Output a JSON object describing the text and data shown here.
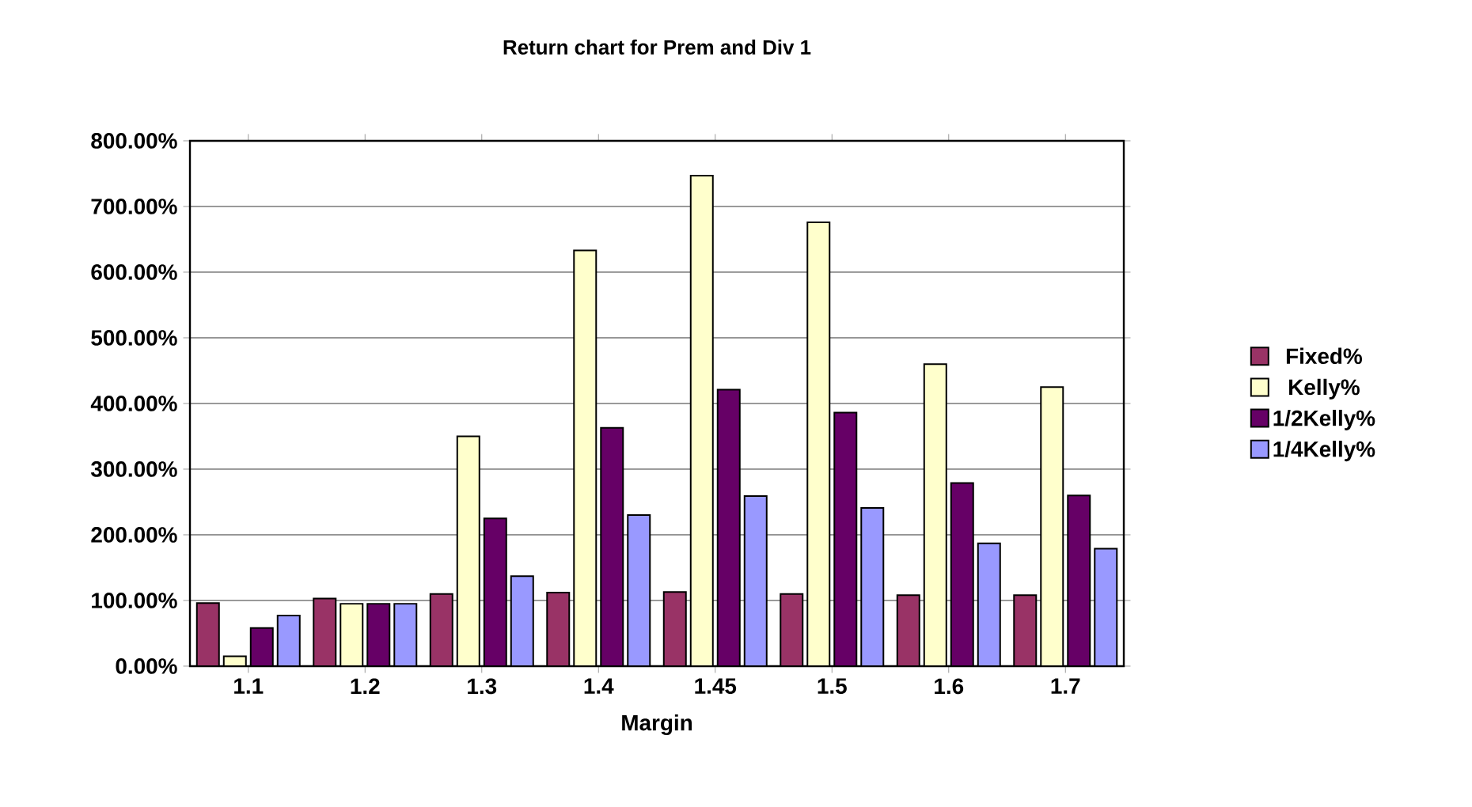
{
  "chart_data": {
    "type": "bar",
    "title": "Return chart for Prem and Div 1",
    "xlabel": "Margin",
    "categories": [
      "1.1",
      "1.2",
      "1.3",
      "1.4",
      "1.45",
      "1.5",
      "1.6",
      "1.7"
    ],
    "series": [
      {
        "name": "Fixed%",
        "color": "#993366",
        "values": [
          96,
          103,
          110,
          112,
          113,
          110,
          108,
          108
        ]
      },
      {
        "name": "Kelly%",
        "color": "#ffffcc",
        "values": [
          15,
          95,
          350,
          633,
          747,
          676,
          460,
          425
        ]
      },
      {
        "name": "1/2Kelly%",
        "color": "#660066",
        "values": [
          58,
          95,
          225,
          363,
          421,
          386,
          279,
          260
        ]
      },
      {
        "name": "1/4Kelly%",
        "color": "#9999ff",
        "values": [
          77,
          95,
          137,
          230,
          259,
          241,
          187,
          179
        ]
      }
    ],
    "ylim": [
      0,
      800
    ],
    "yticks": [
      {
        "value": 0,
        "label": "0.00%"
      },
      {
        "value": 100,
        "label": "100.00%"
      },
      {
        "value": 200,
        "label": "200.00%"
      },
      {
        "value": 300,
        "label": "300.00%"
      },
      {
        "value": 400,
        "label": "400.00%"
      },
      {
        "value": 500,
        "label": "500.00%"
      },
      {
        "value": 600,
        "label": "600.00%"
      },
      {
        "value": 700,
        "label": "700.00%"
      },
      {
        "value": 800,
        "label": "800.00%"
      }
    ],
    "grid": "y",
    "legend": "right"
  }
}
